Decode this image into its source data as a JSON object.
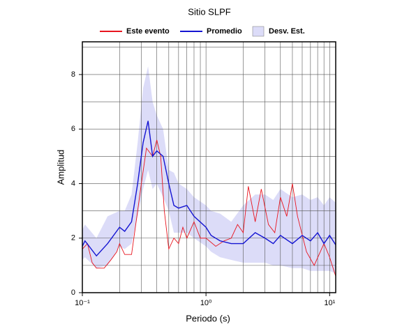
{
  "chart_data": {
    "type": "line",
    "title": "Sitio SLPF",
    "x_label": "Periodo (s)",
    "y_label": "Amplitud",
    "log_x": true,
    "grid": true,
    "xlim": [
      0.1,
      11.2
    ],
    "ylim": [
      0,
      9.2
    ],
    "xticks": [
      {
        "value": 0.1,
        "label": "10⁻¹"
      },
      {
        "value": 1,
        "label": "10⁰"
      },
      {
        "value": 10,
        "label": "10¹"
      }
    ],
    "xminor": [
      0.2,
      0.3,
      0.4,
      0.5,
      0.6,
      0.7,
      0.8,
      0.9,
      2,
      3,
      4,
      5,
      6,
      7,
      8,
      9
    ],
    "yticks": [
      0,
      2,
      4,
      6,
      8
    ],
    "yminor": [
      1,
      3,
      5,
      7,
      9
    ],
    "series": [
      {
        "name": "Este evento",
        "color": "#e8141e",
        "x": [
          0.1,
          0.11,
          0.12,
          0.13,
          0.15,
          0.17,
          0.19,
          0.2,
          0.22,
          0.25,
          0.28,
          0.3,
          0.33,
          0.37,
          0.4,
          0.43,
          0.46,
          0.5,
          0.55,
          0.6,
          0.65,
          0.7,
          0.8,
          0.9,
          1.0,
          1.2,
          1.4,
          1.6,
          1.8,
          2.0,
          2.2,
          2.5,
          2.8,
          3.2,
          3.6,
          4.0,
          4.5,
          5.0,
          5.5,
          6.5,
          7.5,
          9,
          10,
          11.2
        ],
        "values": [
          1.6,
          1.8,
          1.1,
          0.9,
          0.9,
          1.2,
          1.5,
          1.8,
          1.4,
          1.4,
          3.0,
          4.0,
          5.3,
          5.0,
          5.6,
          5.0,
          3.0,
          1.6,
          2.0,
          1.8,
          2.4,
          2.0,
          2.6,
          2.0,
          2.0,
          1.7,
          1.9,
          2.0,
          2.5,
          2.2,
          3.9,
          2.6,
          3.8,
          2.5,
          2.2,
          3.5,
          2.8,
          4.0,
          2.8,
          1.5,
          1.0,
          1.8,
          1.3,
          0.6
        ]
      },
      {
        "name": "Promedio",
        "color": "#1414d2",
        "x": [
          0.1,
          0.105,
          0.13,
          0.16,
          0.2,
          0.22,
          0.25,
          0.28,
          0.31,
          0.34,
          0.37,
          0.4,
          0.45,
          0.5,
          0.55,
          0.6,
          0.7,
          0.8,
          1.0,
          1.1,
          1.3,
          1.6,
          2.0,
          2.5,
          3,
          3.5,
          4,
          5,
          6,
          7,
          8,
          9,
          10,
          11.2
        ],
        "values": [
          1.7,
          1.9,
          1.35,
          1.8,
          2.4,
          2.25,
          2.6,
          4.0,
          5.5,
          6.3,
          5.0,
          5.2,
          5.0,
          4.0,
          3.2,
          3.1,
          3.2,
          2.8,
          2.4,
          2.1,
          1.9,
          1.8,
          1.8,
          2.2,
          2.0,
          1.8,
          2.1,
          1.8,
          2.1,
          1.9,
          2.2,
          1.8,
          2.1,
          1.75
        ]
      },
      {
        "name": "Desv. Est.",
        "color": "#dcdcf8",
        "band": true,
        "x": [
          0.1,
          0.105,
          0.13,
          0.16,
          0.2,
          0.22,
          0.25,
          0.28,
          0.31,
          0.34,
          0.37,
          0.4,
          0.45,
          0.5,
          0.55,
          0.6,
          0.7,
          0.8,
          1.0,
          1.1,
          1.3,
          1.6,
          2.0,
          2.5,
          3,
          3.5,
          4,
          5,
          6,
          7,
          8,
          9,
          10,
          11.2
        ],
        "upper": [
          2.3,
          2.5,
          2.0,
          2.8,
          3.0,
          3.0,
          3.6,
          5.5,
          7.5,
          8.3,
          7.0,
          6.5,
          6.0,
          4.5,
          4.4,
          4.0,
          3.8,
          3.5,
          3.2,
          3.0,
          2.9,
          2.6,
          3.2,
          3.6,
          3.6,
          3.4,
          3.8,
          3.5,
          3.6,
          3.4,
          3.5,
          3.2,
          3.5,
          3.3
        ],
        "lower": [
          1.2,
          1.3,
          0.9,
          1.0,
          1.7,
          1.6,
          1.8,
          2.8,
          3.8,
          4.5,
          3.8,
          4.0,
          3.5,
          3.0,
          2.2,
          2.2,
          2.2,
          2.0,
          1.7,
          1.5,
          1.3,
          1.2,
          1.1,
          1.1,
          1.1,
          1.0,
          1.0,
          0.9,
          0.9,
          0.8,
          0.8,
          0.8,
          0.8,
          0.7
        ]
      }
    ]
  }
}
